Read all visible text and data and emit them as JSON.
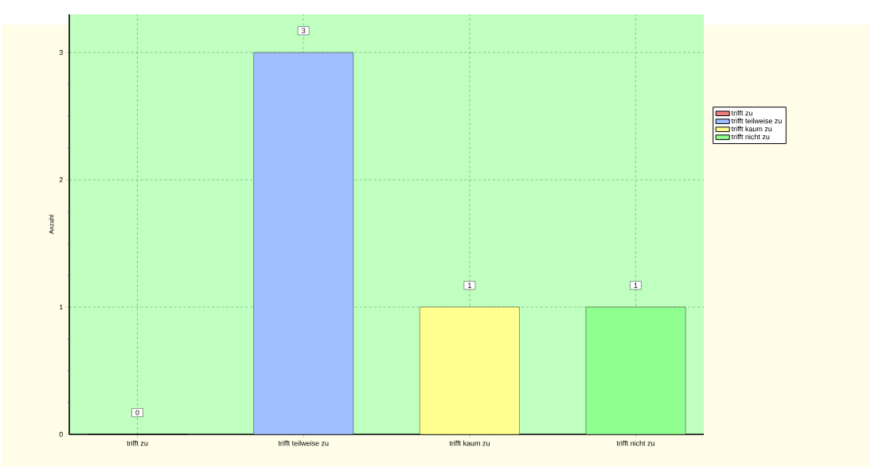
{
  "chart_data": {
    "type": "bar",
    "ylabel": "Anzahl",
    "categories": [
      "trifft zu",
      "trifft teilweise zu",
      "trifft kaum zu",
      "trifft nicht zu"
    ],
    "series": [
      {
        "name": "trifft zu",
        "color": "#f08080",
        "values": [
          0,
          null,
          null,
          null
        ]
      },
      {
        "name": "trifft teilweise zu",
        "color": "#a0bfff",
        "values": [
          null,
          3,
          null,
          null
        ]
      },
      {
        "name": "trifft kaum zu",
        "color": "#ffff90",
        "values": [
          null,
          null,
          1,
          null
        ]
      },
      {
        "name": "trifft nicht zu",
        "color": "#90ff90",
        "values": [
          null,
          null,
          null,
          1
        ]
      }
    ],
    "ylim": [
      0,
      3.3
    ],
    "yticks": [
      0,
      1,
      2,
      3
    ],
    "grid": true,
    "legend": "right",
    "data_labels": true
  }
}
